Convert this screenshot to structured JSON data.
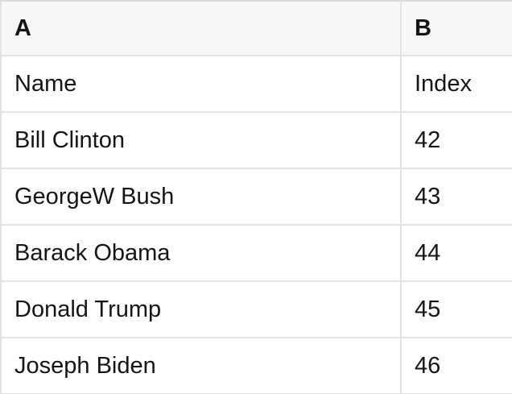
{
  "spreadsheet": {
    "column_headers": [
      "A",
      "B"
    ],
    "rows": [
      {
        "a": "Name",
        "b": "Index"
      },
      {
        "a": "Bill Clinton",
        "b": "42"
      },
      {
        "a": "GeorgeW Bush",
        "b": "43"
      },
      {
        "a": "Barack Obama",
        "b": "44"
      },
      {
        "a": "Donald Trump",
        "b": "45"
      },
      {
        "a": "Joseph Biden",
        "b": "46"
      }
    ]
  },
  "colors": {
    "header_bg": "#f7f7f7",
    "cell_bg": "#ffffff",
    "grid_line": "#e2e2e2",
    "top_border": "#dbdbdb",
    "text_color": "#151515"
  }
}
